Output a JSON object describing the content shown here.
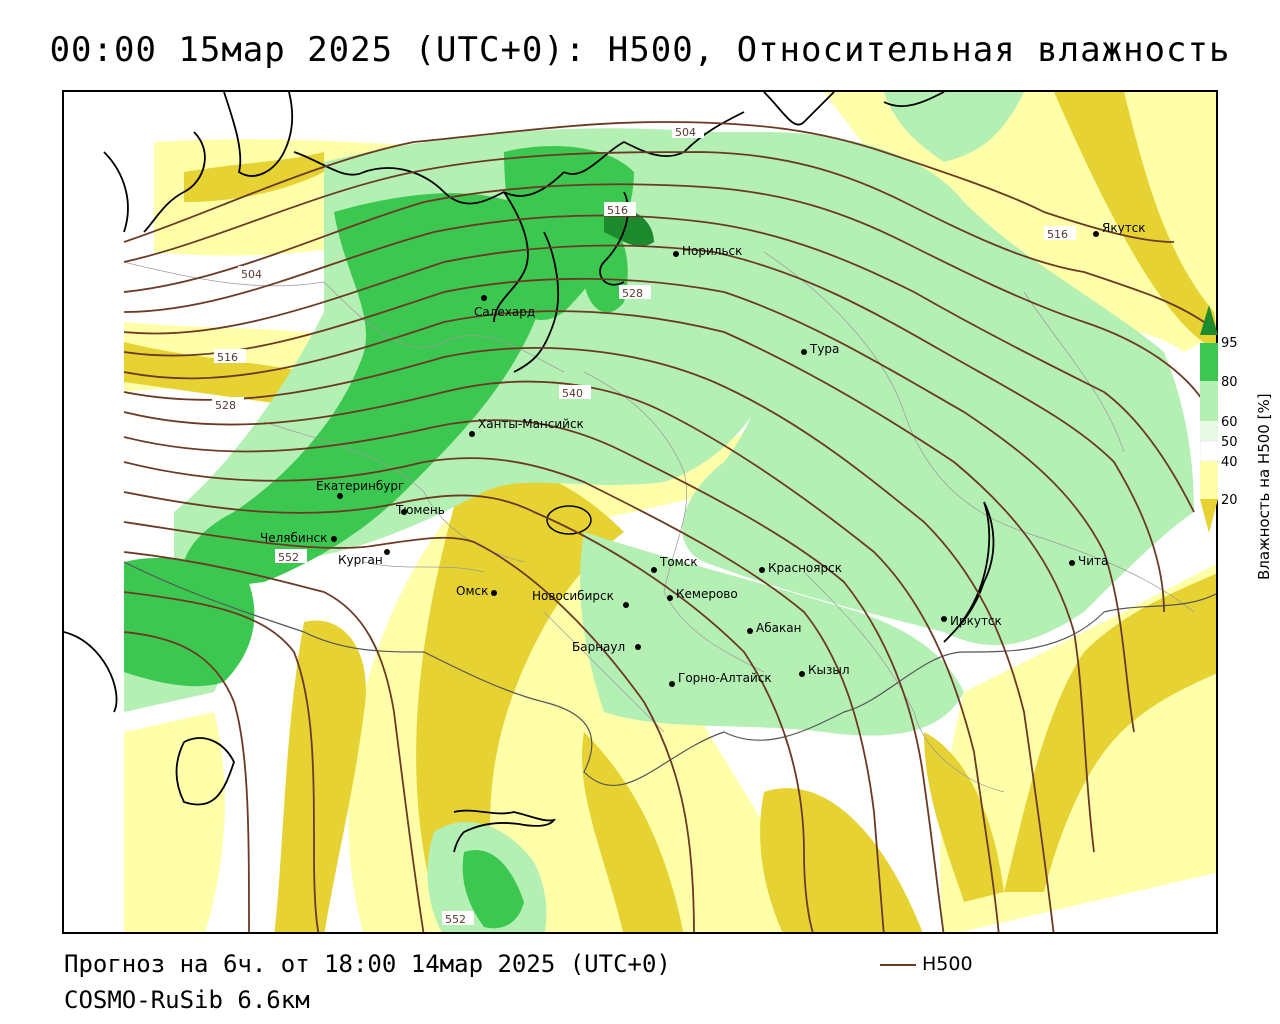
{
  "title": "00:00 15мар 2025 (UTC+0): H500, Относительная влажность",
  "footer": {
    "forecast": "Прогноз на 6ч. от 18:00 14мар 2025 (UTC+0)",
    "model": "COSMO-RuSib 6.6км",
    "legend_label": "H500"
  },
  "colorbar": {
    "title": "Влажность на H500 [%]",
    "ticks": [
      "95",
      "80",
      "60",
      "50",
      "40",
      "20"
    ],
    "colors": {
      "gt95": "#1e8a2e",
      "80_95": "#3cc850",
      "60_80": "#b4f0b4",
      "50_60": "#e6fae6",
      "40_50": "#ffffff",
      "20_40": "#ffffaa",
      "lt20": "#e6d232"
    }
  },
  "colors": {
    "isohypse": "#6b3a24",
    "coast": "#000000"
  },
  "contour_labels": [
    "504",
    "504",
    "516",
    "516",
    "528",
    "528",
    "540",
    "552",
    "552",
    "516"
  ],
  "cities": [
    "Якутск",
    "Норильск",
    "Салехард",
    "Тура",
    "Ханты-Мансийск",
    "Екатеринбург",
    "Тюмень",
    "Челябинск",
    "Курган",
    "Омск",
    "Новосибирск",
    "Томск",
    "Красноярск",
    "Кемерово",
    "Барнаул",
    "Абакан",
    "Горно-Алтайск",
    "Кызыл",
    "Иркутск",
    "Чита"
  ]
}
